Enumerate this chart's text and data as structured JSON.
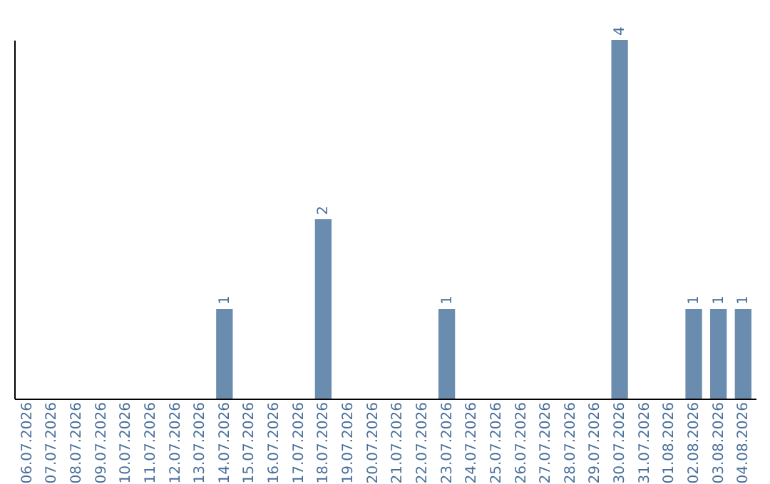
{
  "chart_data": {
    "type": "bar",
    "categories": [
      "06.07.2026",
      "07.07.2026",
      "08.07.2026",
      "09.07.2026",
      "10.07.2026",
      "11.07.2026",
      "12.07.2026",
      "13.07.2026",
      "14.07.2026",
      "15.07.2026",
      "16.07.2026",
      "17.07.2026",
      "18.07.2026",
      "19.07.2026",
      "20.07.2026",
      "21.07.2026",
      "22.07.2026",
      "23.07.2026",
      "24.07.2026",
      "25.07.2026",
      "26.07.2026",
      "27.07.2026",
      "28.07.2026",
      "29.07.2026",
      "30.07.2026",
      "31.07.2026",
      "01.08.2026",
      "02.08.2026",
      "03.08.2026",
      "04.08.2026"
    ],
    "values": [
      0,
      0,
      0,
      0,
      0,
      0,
      0,
      0,
      1,
      0,
      0,
      0,
      2,
      0,
      0,
      0,
      0,
      1,
      0,
      0,
      0,
      0,
      0,
      0,
      4,
      0,
      0,
      1,
      1,
      1
    ],
    "value_labels": [
      null,
      null,
      null,
      null,
      null,
      null,
      null,
      null,
      "1",
      null,
      null,
      null,
      "2",
      null,
      null,
      null,
      null,
      "1",
      null,
      null,
      null,
      null,
      null,
      null,
      "4",
      null,
      null,
      "1",
      "1",
      "1"
    ],
    "color": "#6a8caf"
  }
}
